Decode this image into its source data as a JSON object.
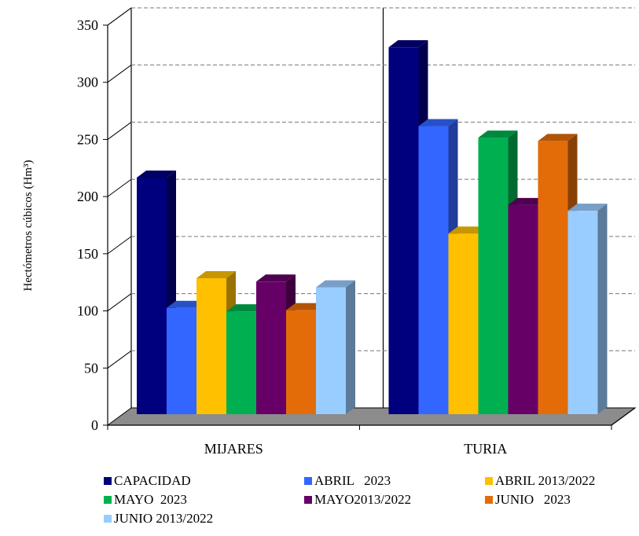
{
  "chart_data": {
    "type": "bar",
    "three_d": true,
    "ylabel": "Hectómetros cúbicos (Hm³)",
    "ylim": [
      0,
      350
    ],
    "yticks": [
      "0",
      "50",
      "100",
      "150",
      "200",
      "250",
      "300",
      "350"
    ],
    "grid": "dashed horizontal",
    "legend_position": "bottom",
    "categories": [
      "MIJARES",
      "TURIA"
    ],
    "series": [
      {
        "name": "CAPACIDAD",
        "color": "#00007E",
        "values": [
          207,
          321
        ]
      },
      {
        "name": "ABRIL   2023",
        "color": "#3366FF",
        "values": [
          93,
          252
        ]
      },
      {
        "name": "ABRIL 2013/2022",
        "color": "#FFC000",
        "values": [
          119,
          158
        ]
      },
      {
        "name": "MAYO  2023",
        "color": "#00B050",
        "values": [
          90,
          242
        ]
      },
      {
        "name": "MAYO2013/2022",
        "color": "#660066",
        "values": [
          116,
          183
        ]
      },
      {
        "name": "JUNIO   2023",
        "color": "#E36C09",
        "values": [
          91,
          239
        ]
      },
      {
        "name": "JUNIO 2013/2022",
        "color": "#99CCFF",
        "values": [
          111,
          178
        ]
      }
    ]
  }
}
